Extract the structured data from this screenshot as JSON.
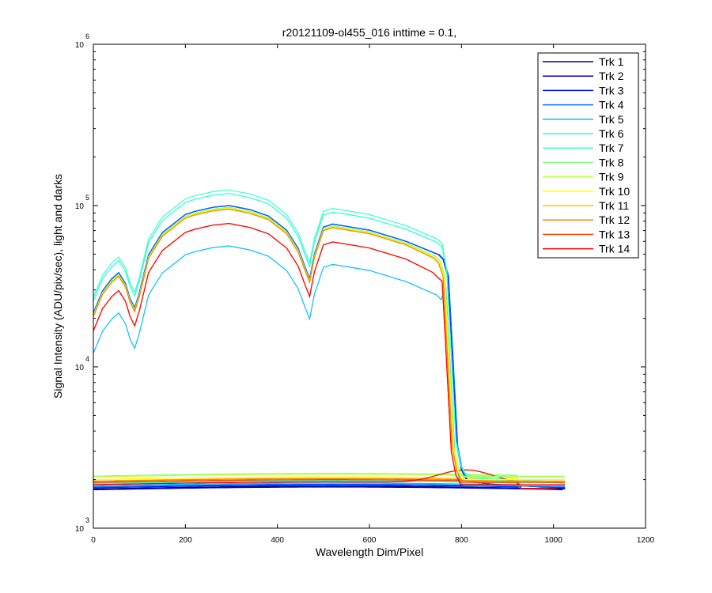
{
  "chart_data": {
    "type": "line",
    "title": "r20121109-ol455_016 inttime = 0.1,",
    "xlabel": "Wavelength Dim/Pixel",
    "ylabel": "Signal Intensity (ADU/pix/sec), light and darks",
    "xlim": [
      0,
      1200
    ],
    "ylim": [
      1000,
      1000000
    ],
    "yscale": "log",
    "x_ticks": [
      {
        "value": 0,
        "label": "0"
      },
      {
        "value": 200,
        "label": "200"
      },
      {
        "value": 400,
        "label": "400"
      },
      {
        "value": 600,
        "label": "600"
      },
      {
        "value": 800,
        "label": "800"
      },
      {
        "value": 1000,
        "label": "1000"
      },
      {
        "value": 1200,
        "label": "1200"
      }
    ],
    "y_ticks": [
      {
        "value": 1000,
        "base": "10",
        "exp": "3"
      },
      {
        "value": 10000,
        "base": "10",
        "exp": "4"
      },
      {
        "value": 100000,
        "base": "10",
        "exp": "5"
      },
      {
        "value": 1000000,
        "base": "10",
        "exp": "6"
      }
    ],
    "grid": false,
    "legend_position": "top-right",
    "x": [
      0,
      20,
      40,
      55,
      70,
      80,
      90,
      100,
      120,
      150,
      200,
      220,
      260,
      295,
      340,
      380,
      420,
      445,
      460,
      470,
      480,
      500,
      520,
      560,
      600,
      680,
      740,
      750,
      760,
      770,
      780,
      790,
      800,
      820,
      860,
      900,
      1000,
      1025
    ],
    "series": [
      {
        "name": "Trk 1",
        "color": "#00008f",
        "light_scale": 0.8,
        "dark_level": 1750,
        "cutoff_shift": 10
      },
      {
        "name": "Trk 2",
        "color": "#0000bf",
        "light_scale": 0.8,
        "dark_level": 1730,
        "cutoff_shift": 10
      },
      {
        "name": "Trk 3",
        "color": "#0010ff",
        "light_scale": 0.8,
        "dark_level": 1780,
        "cutoff_shift": 10
      },
      {
        "name": "Trk 4",
        "color": "#0070ff",
        "light_scale": 0.8,
        "dark_level": 1800,
        "cutoff_shift": 12
      },
      {
        "name": "Trk 5",
        "color": "#00bfff",
        "light_scale": 0.45,
        "dark_level": 1830,
        "cutoff_shift": 6
      },
      {
        "name": "Trk 6",
        "color": "#20ffdf",
        "light_scale": 0.95,
        "dark_level": 1900,
        "cutoff_shift": 8
      },
      {
        "name": "Trk 7",
        "color": "#40ffbf",
        "light_scale": 1.0,
        "dark_level": 1880,
        "cutoff_shift": 8
      },
      {
        "name": "Trk 8",
        "color": "#80ff80",
        "light_scale": 0.78,
        "dark_level": 2100,
        "cutoff_shift": 4
      },
      {
        "name": "Trk 9",
        "color": "#bfff40",
        "light_scale": 0.76,
        "dark_level": 2080,
        "cutoff_shift": 4
      },
      {
        "name": "Trk 10",
        "color": "#ffff00",
        "light_scale": 0.77,
        "dark_level": 2000,
        "cutoff_shift": 2
      },
      {
        "name": "Trk 11",
        "color": "#ffbf00",
        "light_scale": 0.76,
        "dark_level": 1960,
        "cutoff_shift": 0
      },
      {
        "name": "Trk 12",
        "color": "#ff8000",
        "light_scale": 0.76,
        "dark_level": 1950,
        "cutoff_shift": 0
      },
      {
        "name": "Trk 13",
        "color": "#ff4000",
        "light_scale": 0.62,
        "dark_level": 1920,
        "cutoff_shift": -2
      },
      {
        "name": "Trk 14",
        "color": "#ff0000",
        "light_scale": 0.62,
        "dark_level": 1860,
        "cutoff_shift": -2
      }
    ],
    "light_profile": [
      27000,
      37000,
      44000,
      48000,
      41000,
      33000,
      29000,
      36000,
      62000,
      85000,
      110000,
      115000,
      122000,
      125000,
      118000,
      108000,
      88000,
      68000,
      52000,
      44000,
      62000,
      92000,
      96000,
      92000,
      88000,
      75000,
      62000,
      58000,
      40000,
      12000,
      3500,
      2500,
      2200,
      2100,
      2050,
      2000,
      1950,
      1900
    ],
    "dark_bump": {
      "center": 810,
      "width": 80,
      "peak": 2250,
      "series": "Trk 14"
    }
  }
}
